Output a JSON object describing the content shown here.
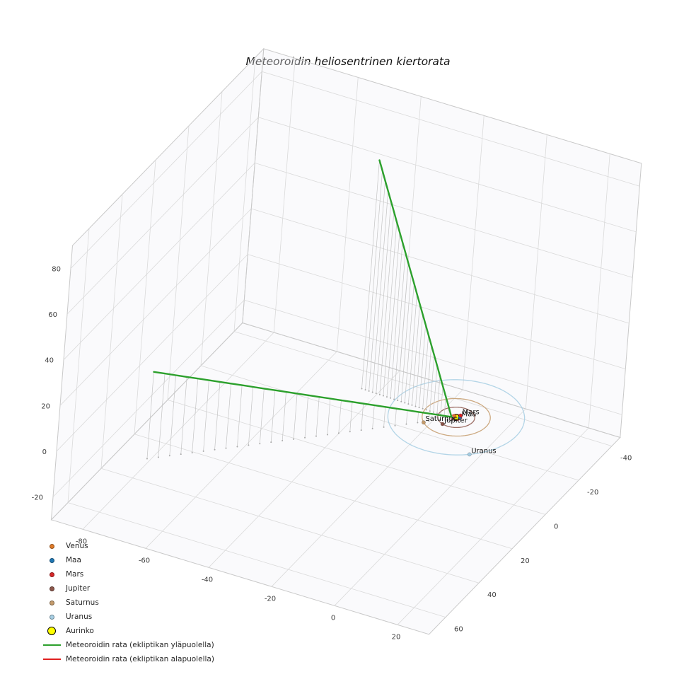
{
  "chart_data": {
    "type": "line",
    "projection": "3d",
    "title": "Meteoroidin heliosentrinen kiertorata",
    "axes": {
      "x": {
        "lim": [
          -90,
          30
        ],
        "ticks": [
          -80,
          -60,
          -40,
          -20,
          0,
          20
        ]
      },
      "y": {
        "lim": [
          -45,
          70
        ],
        "ticks": [
          -40,
          -20,
          0,
          20,
          40,
          60
        ]
      },
      "z": {
        "lim": [
          -30,
          90
        ],
        "ticks": [
          -20,
          0,
          20,
          40,
          60,
          80
        ]
      },
      "grid": true,
      "grid_color": "#dadada",
      "pane_edge_color": "#c9c9c9",
      "tick_color": "#3d3d3d"
    },
    "sun": {
      "name": "Aurinko",
      "position": [
        0,
        0,
        0
      ],
      "color": "#ffff00",
      "edge_color": "#000000"
    },
    "planets": [
      {
        "name": "Venus",
        "color": "#e07b28",
        "orbit_radius_au": 0.72,
        "angle_deg": 200,
        "show_label": false
      },
      {
        "name": "Maa",
        "color": "#1f77b4",
        "orbit_radius_au": 1.0,
        "angle_deg": -20,
        "show_label": true
      },
      {
        "name": "Mars",
        "color": "#d62728",
        "orbit_radius_au": 1.52,
        "angle_deg": -65,
        "show_label": true
      },
      {
        "name": "Jupiter",
        "color": "#8c564b",
        "orbit_radius_au": 5.2,
        "angle_deg": 110,
        "show_label": true
      },
      {
        "name": "Saturnus",
        "color": "#c49b6c",
        "orbit_radius_au": 9.58,
        "angle_deg": 135,
        "show_label": true
      },
      {
        "name": "Uranus",
        "color": "#a6cee3",
        "orbit_radius_au": 19.2,
        "angle_deg": 51,
        "show_label": true
      }
    ],
    "meteoroid": {
      "above_label": "Meteoroidin rata (ekliptikan yläpuolella)",
      "below_label": "Meteoroidin rata (ekliptikan alapuolella)",
      "above_color": "#2ca02c",
      "below_color": "#e02020",
      "above_segments": [
        {
          "from": [
            -66,
            61,
            38
          ],
          "to": [
            -1,
            1,
            0.5
          ],
          "samples": 27
        },
        {
          "from": [
            -1,
            1,
            0.5
          ],
          "to": [
            -30,
            0,
            100
          ],
          "samples": 25
        }
      ],
      "below_segments": [],
      "stem_color": "#c4c4c4",
      "stem_dot_color": "#a8a8a8",
      "stem_plane_z": 0
    }
  },
  "legend": {
    "items": [
      {
        "label": "Venus",
        "marker": "dot",
        "color": "#e07b28"
      },
      {
        "label": "Maa",
        "marker": "dot",
        "color": "#1f77b4"
      },
      {
        "label": "Mars",
        "marker": "dot",
        "color": "#d62728"
      },
      {
        "label": "Jupiter",
        "marker": "dot",
        "color": "#8c564b"
      },
      {
        "label": "Saturnus",
        "marker": "dot",
        "color": "#c49b6c"
      },
      {
        "label": "Uranus",
        "marker": "dot",
        "color": "#a6cee3"
      },
      {
        "label": "Aurinko",
        "marker": "dot-large",
        "color": "#ffff00",
        "edge": "#000000"
      },
      {
        "label": "Meteoroidin rata (ekliptikan yläpuolella)",
        "marker": "line",
        "color": "#2ca02c"
      },
      {
        "label": "Meteoroidin rata (ekliptikan alapuolella)",
        "marker": "line",
        "color": "#e02020"
      }
    ]
  }
}
